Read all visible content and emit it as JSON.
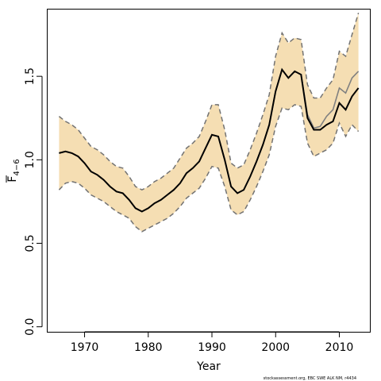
{
  "chart_data": {
    "type": "line",
    "xlabel": "Year",
    "ylabel": {
      "main": "F",
      "sub": "4−6"
    },
    "xlim": [
      1964.2,
      2014.8
    ],
    "ylim": [
      -0.03,
      1.9
    ],
    "x_ticks": [
      1970,
      1980,
      1990,
      2000,
      2010
    ],
    "y_ticks": [
      "0.0",
      "0.5",
      "1.0",
      "1.5"
    ],
    "band_color": "#f5deb3",
    "x": [
      1966,
      1967,
      1968,
      1969,
      1970,
      1971,
      1972,
      1973,
      1974,
      1975,
      1976,
      1977,
      1978,
      1979,
      1980,
      1981,
      1982,
      1983,
      1984,
      1985,
      1986,
      1987,
      1988,
      1989,
      1990,
      1991,
      1992,
      1993,
      1994,
      1995,
      1996,
      1997,
      1998,
      1999,
      2000,
      2001,
      2002,
      2003,
      2004,
      2005,
      2006,
      2007,
      2008,
      2009,
      2010,
      2011,
      2012,
      2013
    ],
    "series": [
      {
        "role": "band_upper",
        "color": "#737373",
        "dash": "6,4",
        "values": [
          1.26,
          1.23,
          1.21,
          1.18,
          1.13,
          1.08,
          1.06,
          1.03,
          0.99,
          0.96,
          0.95,
          0.9,
          0.84,
          0.82,
          0.84,
          0.87,
          0.89,
          0.92,
          0.95,
          1.01,
          1.07,
          1.1,
          1.14,
          1.23,
          1.33,
          1.33,
          1.18,
          0.98,
          0.95,
          0.97,
          1.06,
          1.16,
          1.27,
          1.39,
          1.62,
          1.76,
          1.7,
          1.73,
          1.72,
          1.45,
          1.37,
          1.37,
          1.43,
          1.48,
          1.65,
          1.62,
          1.75,
          1.88
        ]
      },
      {
        "role": "band_lower",
        "color": "#737373",
        "dash": "6,4",
        "values": [
          0.82,
          0.86,
          0.87,
          0.86,
          0.83,
          0.79,
          0.77,
          0.75,
          0.72,
          0.69,
          0.67,
          0.65,
          0.6,
          0.57,
          0.59,
          0.61,
          0.63,
          0.65,
          0.68,
          0.72,
          0.77,
          0.8,
          0.83,
          0.89,
          0.96,
          0.95,
          0.84,
          0.7,
          0.67,
          0.69,
          0.76,
          0.84,
          0.93,
          1.03,
          1.2,
          1.31,
          1.3,
          1.33,
          1.32,
          1.1,
          1.02,
          1.04,
          1.06,
          1.1,
          1.22,
          1.14,
          1.21,
          1.17
        ]
      },
      {
        "role": "secondary",
        "color": "#808080",
        "values": [
          1.04,
          1.05,
          1.04,
          1.02,
          0.98,
          0.93,
          0.91,
          0.88,
          0.84,
          0.81,
          0.8,
          0.76,
          0.71,
          0.69,
          0.71,
          0.74,
          0.76,
          0.79,
          0.82,
          0.86,
          0.92,
          0.95,
          0.99,
          1.07,
          1.15,
          1.14,
          1.0,
          0.84,
          0.8,
          0.82,
          0.9,
          0.99,
          1.09,
          1.21,
          1.41,
          1.54,
          1.49,
          1.53,
          1.51,
          1.27,
          1.19,
          1.2,
          1.26,
          1.3,
          1.43,
          1.4,
          1.49,
          1.53
        ]
      },
      {
        "role": "estimate",
        "color": "#000000",
        "values": [
          1.04,
          1.05,
          1.04,
          1.02,
          0.98,
          0.93,
          0.91,
          0.88,
          0.84,
          0.81,
          0.8,
          0.76,
          0.71,
          0.69,
          0.71,
          0.74,
          0.76,
          0.79,
          0.82,
          0.86,
          0.92,
          0.95,
          0.99,
          1.07,
          1.15,
          1.14,
          1.0,
          0.84,
          0.8,
          0.82,
          0.9,
          0.99,
          1.09,
          1.21,
          1.41,
          1.54,
          1.49,
          1.53,
          1.51,
          1.25,
          1.18,
          1.18,
          1.21,
          1.23,
          1.34,
          1.3,
          1.38,
          1.43
        ]
      }
    ]
  },
  "footer": {
    "credit": "stockassessment.org, EBC SWE ALK NM, r4434"
  }
}
